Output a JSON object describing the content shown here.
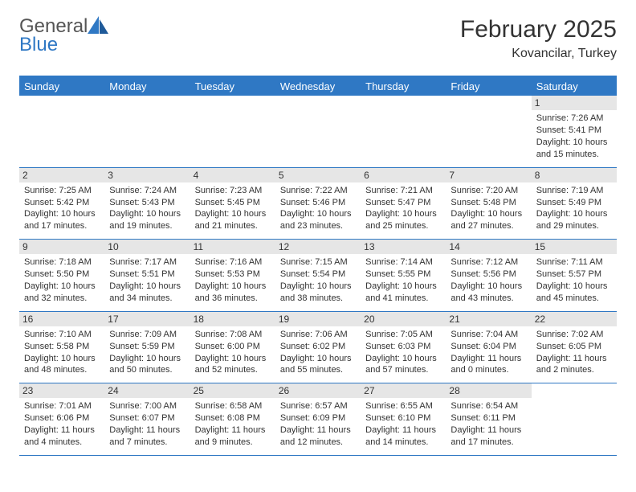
{
  "brand": {
    "name1": "General",
    "name2": "Blue"
  },
  "colors": {
    "header_bg": "#2f78c4",
    "daynum_bg": "#e6e6e6",
    "text": "#333333",
    "border": "#2f78c4",
    "background": "#ffffff"
  },
  "title": {
    "month": "February 2025",
    "location": "Kovancilar, Turkey"
  },
  "daynames": [
    "Sunday",
    "Monday",
    "Tuesday",
    "Wednesday",
    "Thursday",
    "Friday",
    "Saturday"
  ],
  "weeks": [
    [
      null,
      null,
      null,
      null,
      null,
      null,
      {
        "n": "1",
        "sr": "Sunrise: 7:26 AM",
        "ss": "Sunset: 5:41 PM",
        "d1": "Daylight: 10 hours",
        "d2": "and 15 minutes."
      }
    ],
    [
      {
        "n": "2",
        "sr": "Sunrise: 7:25 AM",
        "ss": "Sunset: 5:42 PM",
        "d1": "Daylight: 10 hours",
        "d2": "and 17 minutes."
      },
      {
        "n": "3",
        "sr": "Sunrise: 7:24 AM",
        "ss": "Sunset: 5:43 PM",
        "d1": "Daylight: 10 hours",
        "d2": "and 19 minutes."
      },
      {
        "n": "4",
        "sr": "Sunrise: 7:23 AM",
        "ss": "Sunset: 5:45 PM",
        "d1": "Daylight: 10 hours",
        "d2": "and 21 minutes."
      },
      {
        "n": "5",
        "sr": "Sunrise: 7:22 AM",
        "ss": "Sunset: 5:46 PM",
        "d1": "Daylight: 10 hours",
        "d2": "and 23 minutes."
      },
      {
        "n": "6",
        "sr": "Sunrise: 7:21 AM",
        "ss": "Sunset: 5:47 PM",
        "d1": "Daylight: 10 hours",
        "d2": "and 25 minutes."
      },
      {
        "n": "7",
        "sr": "Sunrise: 7:20 AM",
        "ss": "Sunset: 5:48 PM",
        "d1": "Daylight: 10 hours",
        "d2": "and 27 minutes."
      },
      {
        "n": "8",
        "sr": "Sunrise: 7:19 AM",
        "ss": "Sunset: 5:49 PM",
        "d1": "Daylight: 10 hours",
        "d2": "and 29 minutes."
      }
    ],
    [
      {
        "n": "9",
        "sr": "Sunrise: 7:18 AM",
        "ss": "Sunset: 5:50 PM",
        "d1": "Daylight: 10 hours",
        "d2": "and 32 minutes."
      },
      {
        "n": "10",
        "sr": "Sunrise: 7:17 AM",
        "ss": "Sunset: 5:51 PM",
        "d1": "Daylight: 10 hours",
        "d2": "and 34 minutes."
      },
      {
        "n": "11",
        "sr": "Sunrise: 7:16 AM",
        "ss": "Sunset: 5:53 PM",
        "d1": "Daylight: 10 hours",
        "d2": "and 36 minutes."
      },
      {
        "n": "12",
        "sr": "Sunrise: 7:15 AM",
        "ss": "Sunset: 5:54 PM",
        "d1": "Daylight: 10 hours",
        "d2": "and 38 minutes."
      },
      {
        "n": "13",
        "sr": "Sunrise: 7:14 AM",
        "ss": "Sunset: 5:55 PM",
        "d1": "Daylight: 10 hours",
        "d2": "and 41 minutes."
      },
      {
        "n": "14",
        "sr": "Sunrise: 7:12 AM",
        "ss": "Sunset: 5:56 PM",
        "d1": "Daylight: 10 hours",
        "d2": "and 43 minutes."
      },
      {
        "n": "15",
        "sr": "Sunrise: 7:11 AM",
        "ss": "Sunset: 5:57 PM",
        "d1": "Daylight: 10 hours",
        "d2": "and 45 minutes."
      }
    ],
    [
      {
        "n": "16",
        "sr": "Sunrise: 7:10 AM",
        "ss": "Sunset: 5:58 PM",
        "d1": "Daylight: 10 hours",
        "d2": "and 48 minutes."
      },
      {
        "n": "17",
        "sr": "Sunrise: 7:09 AM",
        "ss": "Sunset: 5:59 PM",
        "d1": "Daylight: 10 hours",
        "d2": "and 50 minutes."
      },
      {
        "n": "18",
        "sr": "Sunrise: 7:08 AM",
        "ss": "Sunset: 6:00 PM",
        "d1": "Daylight: 10 hours",
        "d2": "and 52 minutes."
      },
      {
        "n": "19",
        "sr": "Sunrise: 7:06 AM",
        "ss": "Sunset: 6:02 PM",
        "d1": "Daylight: 10 hours",
        "d2": "and 55 minutes."
      },
      {
        "n": "20",
        "sr": "Sunrise: 7:05 AM",
        "ss": "Sunset: 6:03 PM",
        "d1": "Daylight: 10 hours",
        "d2": "and 57 minutes."
      },
      {
        "n": "21",
        "sr": "Sunrise: 7:04 AM",
        "ss": "Sunset: 6:04 PM",
        "d1": "Daylight: 11 hours",
        "d2": "and 0 minutes."
      },
      {
        "n": "22",
        "sr": "Sunrise: 7:02 AM",
        "ss": "Sunset: 6:05 PM",
        "d1": "Daylight: 11 hours",
        "d2": "and 2 minutes."
      }
    ],
    [
      {
        "n": "23",
        "sr": "Sunrise: 7:01 AM",
        "ss": "Sunset: 6:06 PM",
        "d1": "Daylight: 11 hours",
        "d2": "and 4 minutes."
      },
      {
        "n": "24",
        "sr": "Sunrise: 7:00 AM",
        "ss": "Sunset: 6:07 PM",
        "d1": "Daylight: 11 hours",
        "d2": "and 7 minutes."
      },
      {
        "n": "25",
        "sr": "Sunrise: 6:58 AM",
        "ss": "Sunset: 6:08 PM",
        "d1": "Daylight: 11 hours",
        "d2": "and 9 minutes."
      },
      {
        "n": "26",
        "sr": "Sunrise: 6:57 AM",
        "ss": "Sunset: 6:09 PM",
        "d1": "Daylight: 11 hours",
        "d2": "and 12 minutes."
      },
      {
        "n": "27",
        "sr": "Sunrise: 6:55 AM",
        "ss": "Sunset: 6:10 PM",
        "d1": "Daylight: 11 hours",
        "d2": "and 14 minutes."
      },
      {
        "n": "28",
        "sr": "Sunrise: 6:54 AM",
        "ss": "Sunset: 6:11 PM",
        "d1": "Daylight: 11 hours",
        "d2": "and 17 minutes."
      },
      null
    ]
  ]
}
